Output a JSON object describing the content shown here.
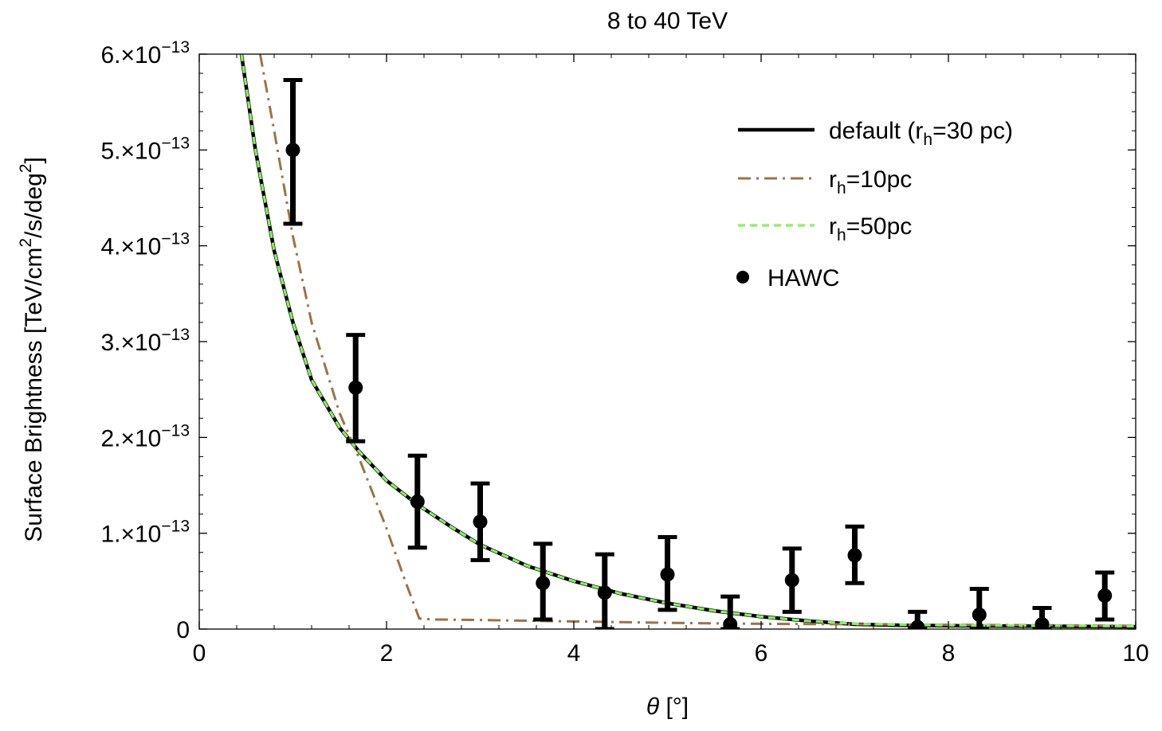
{
  "chart_data": {
    "type": "line",
    "title": "8 to 40 TeV",
    "xlabel": "θ [°]",
    "ylabel": "Surface Brightness [TeV/cm²/s/deg²]",
    "xlim": [
      0,
      10
    ],
    "ylim": [
      0,
      6e-13
    ],
    "x_ticks": [
      0,
      2,
      4,
      6,
      8,
      10
    ],
    "x_tick_labels": [
      "0",
      "2",
      "4",
      "6",
      "8",
      "10"
    ],
    "y_ticks": [
      0,
      1e-13,
      2e-13,
      3e-13,
      4e-13,
      5e-13,
      6e-13
    ],
    "y_tick_labels": [
      {
        "mant": "0",
        "exp": ""
      },
      {
        "mant": "1.×10",
        "exp": "−13"
      },
      {
        "mant": "2.×10",
        "exp": "−13"
      },
      {
        "mant": "3.×10",
        "exp": "−13"
      },
      {
        "mant": "4.×10",
        "exp": "−13"
      },
      {
        "mant": "5.×10",
        "exp": "−13"
      },
      {
        "mant": "6.×10",
        "exp": "−13"
      }
    ],
    "grid": false,
    "legend_position": "top-right",
    "series": [
      {
        "name": "default (rh=30 pc)",
        "legend": {
          "base": "default (r",
          "sub": "h",
          "rest": "=30 pc)"
        },
        "color": "#000000",
        "style": "solid",
        "x": [
          0.45,
          0.6,
          0.8,
          1.0,
          1.2,
          1.5,
          1.7,
          2.0,
          2.33,
          2.7,
          3.0,
          3.5,
          4.0,
          4.5,
          5.0,
          5.5,
          6.0,
          6.5,
          7.0,
          7.5,
          8.0,
          9.0,
          10.0
        ],
        "y": [
          6e-13,
          5e-13,
          3.95e-13,
          3.2e-13,
          2.6e-13,
          2.1e-13,
          1.86e-13,
          1.55e-13,
          1.3e-13,
          1.06e-13,
          8.8e-14,
          6.6e-14,
          5e-14,
          3.7e-14,
          2.7e-14,
          1.9e-14,
          1.3e-14,
          8.5e-15,
          5e-15,
          4e-15,
          3.5e-15,
          3e-15,
          2.5e-15
        ]
      },
      {
        "name": "rh=10pc",
        "legend": {
          "base": "r",
          "sub": "h",
          "rest": "=10pc"
        },
        "color": "#9b7445",
        "style": "dashdot",
        "x": [
          0.65,
          0.8,
          1.0,
          1.2,
          1.5,
          1.7,
          2.0,
          2.2,
          2.35,
          2.5,
          3.0,
          4.0,
          5.0,
          6.0,
          7.0,
          8.0,
          9.0,
          10.0
        ],
        "y": [
          6e-13,
          5.2e-13,
          4.1e-13,
          3.2e-13,
          2.25e-13,
          1.8e-13,
          1.05e-13,
          5e-14,
          1.1e-14,
          1e-14,
          9.5e-15,
          8e-15,
          6.5e-15,
          5.5e-15,
          5e-15,
          4.5e-15,
          4e-15,
          3.5e-15
        ]
      },
      {
        "name": "rh=50pc",
        "legend": {
          "base": "r",
          "sub": "h",
          "rest": "=50pc"
        },
        "color": "#88f25e",
        "style": "dashed",
        "x": [
          0.45,
          0.6,
          0.8,
          1.0,
          1.2,
          1.5,
          1.7,
          2.0,
          2.33,
          2.7,
          3.0,
          3.5,
          4.0,
          4.5,
          5.0,
          5.5,
          6.0,
          6.5,
          7.0,
          7.5,
          8.0,
          9.0,
          10.0
        ],
        "y": [
          6e-13,
          5e-13,
          3.95e-13,
          3.2e-13,
          2.6e-13,
          2.1e-13,
          1.86e-13,
          1.55e-13,
          1.3e-13,
          1.06e-13,
          8.8e-14,
          6.6e-14,
          5e-14,
          3.7e-14,
          2.7e-14,
          1.9e-14,
          1.3e-14,
          8.5e-15,
          5.5e-15,
          4.5e-15,
          4e-15,
          3.5e-15,
          3e-15
        ]
      }
    ],
    "points": {
      "name": "HAWC",
      "color": "#000000",
      "x": [
        1.0,
        1.67,
        2.33,
        3.0,
        3.67,
        4.33,
        5.0,
        5.67,
        6.33,
        7.0,
        7.67,
        8.33,
        9.0,
        9.67
      ],
      "y": [
        5e-13,
        2.52e-13,
        1.33e-13,
        1.12e-13,
        4.8e-14,
        3.8e-14,
        5.7e-14,
        5e-15,
        5.1e-14,
        7.7e-14,
        2e-15,
        1.5e-14,
        5e-15,
        3.5e-14
      ],
      "y_low": [
        4.23e-13,
        1.96e-13,
        8.5e-14,
        7.2e-14,
        1e-14,
        0.0,
        2e-14,
        0.0,
        1.8e-14,
        4.8e-14,
        0.0,
        0.0,
        0.0,
        1e-14
      ],
      "y_high": [
        5.73e-13,
        3.07e-13,
        1.81e-13,
        1.52e-13,
        8.9e-14,
        7.8e-14,
        9.6e-14,
        3.4e-14,
        8.4e-14,
        1.07e-13,
        1.8e-14,
        4.2e-14,
        2.2e-14,
        5.9e-14
      ]
    }
  }
}
